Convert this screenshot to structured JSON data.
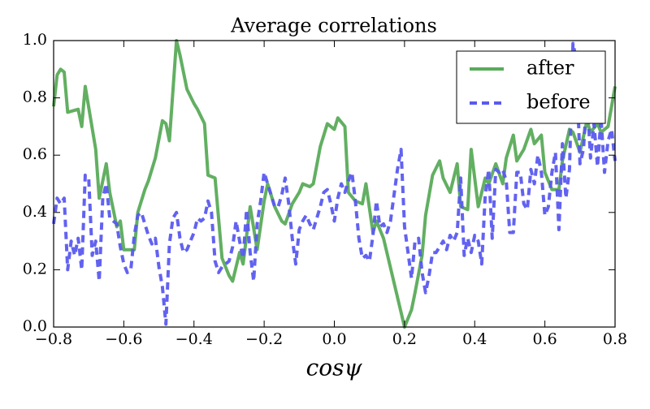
{
  "chart_data": {
    "type": "line",
    "title": "Average correlations",
    "xlabel": "cosψ",
    "xlim": [
      -0.8,
      0.8
    ],
    "ylim": [
      0,
      1
    ],
    "xticks": [
      {
        "value": -0.8,
        "label": "−0.8"
      },
      {
        "value": -0.6,
        "label": "−0.6"
      },
      {
        "value": -0.4,
        "label": "−0.4"
      },
      {
        "value": -0.2,
        "label": "−0.2"
      },
      {
        "value": 0,
        "label": "0.0"
      },
      0.2,
      0.4,
      0.6,
      0.8
    ],
    "yticks": [
      {
        "value": 0,
        "label": "0.0"
      },
      0.2,
      0.4,
      0.6,
      0.8,
      {
        "value": 1,
        "label": "1.0"
      }
    ],
    "legend": "upper right",
    "series": [
      {
        "name": "after",
        "color": "#5aab5a",
        "dash": "solid",
        "x": [
          -0.8,
          -0.79,
          -0.78,
          -0.77,
          -0.76,
          -0.73,
          -0.72,
          -0.71,
          -0.68,
          -0.67,
          -0.65,
          -0.64,
          -0.62,
          -0.61,
          -0.6,
          -0.57,
          -0.56,
          -0.54,
          -0.53,
          -0.51,
          -0.49,
          -0.48,
          -0.47,
          -0.45,
          -0.44,
          -0.42,
          -0.4,
          -0.39,
          -0.37,
          -0.36,
          -0.34,
          -0.32,
          -0.3,
          -0.29,
          -0.27,
          -0.26,
          -0.24,
          -0.22,
          -0.2,
          -0.19,
          -0.17,
          -0.15,
          -0.14,
          -0.12,
          -0.1,
          -0.09,
          -0.07,
          -0.06,
          -0.04,
          -0.02,
          0.0,
          0.01,
          0.03,
          0.04,
          0.06,
          0.08,
          0.09,
          0.11,
          0.12,
          0.14,
          0.2,
          0.22,
          0.23,
          0.25,
          0.26,
          0.28,
          0.3,
          0.31,
          0.33,
          0.35,
          0.36,
          0.38,
          0.39,
          0.41,
          0.43,
          0.44,
          0.46,
          0.48,
          0.49,
          0.51,
          0.52,
          0.54,
          0.56,
          0.57,
          0.59,
          0.6,
          0.62,
          0.64,
          0.65,
          0.67,
          0.68,
          0.7,
          0.72,
          0.73,
          0.75,
          0.76,
          0.78,
          0.8
        ],
        "values": [
          0.77,
          0.88,
          0.9,
          0.89,
          0.75,
          0.76,
          0.7,
          0.84,
          0.62,
          0.45,
          0.57,
          0.47,
          0.35,
          0.37,
          0.27,
          0.27,
          0.4,
          0.48,
          0.51,
          0.59,
          0.72,
          0.71,
          0.65,
          1.0,
          0.95,
          0.83,
          0.78,
          0.76,
          0.71,
          0.53,
          0.52,
          0.24,
          0.18,
          0.16,
          0.26,
          0.22,
          0.42,
          0.27,
          0.44,
          0.5,
          0.42,
          0.37,
          0.36,
          0.43,
          0.47,
          0.5,
          0.49,
          0.5,
          0.63,
          0.71,
          0.69,
          0.73,
          0.7,
          0.47,
          0.44,
          0.43,
          0.5,
          0.33,
          0.37,
          0.31,
          0.0,
          0.06,
          0.12,
          0.25,
          0.39,
          0.53,
          0.58,
          0.52,
          0.47,
          0.57,
          0.42,
          0.41,
          0.62,
          0.42,
          0.52,
          0.5,
          0.57,
          0.5,
          0.59,
          0.67,
          0.58,
          0.62,
          0.69,
          0.64,
          0.67,
          0.54,
          0.48,
          0.48,
          0.58,
          0.69,
          0.68,
          0.61,
          0.72,
          0.68,
          0.71,
          0.68,
          0.7,
          0.84
        ]
      },
      {
        "name": "before",
        "color": "#5a5af0",
        "dash": "dashed",
        "x": [
          -0.8,
          -0.79,
          -0.78,
          -0.77,
          -0.76,
          -0.75,
          -0.74,
          -0.73,
          -0.72,
          -0.71,
          -0.7,
          -0.69,
          -0.68,
          -0.67,
          -0.66,
          -0.65,
          -0.64,
          -0.62,
          -0.61,
          -0.6,
          -0.59,
          -0.58,
          -0.57,
          -0.56,
          -0.55,
          -0.54,
          -0.53,
          -0.52,
          -0.51,
          -0.5,
          -0.49,
          -0.48,
          -0.47,
          -0.46,
          -0.45,
          -0.44,
          -0.43,
          -0.42,
          -0.41,
          -0.4,
          -0.39,
          -0.38,
          -0.37,
          -0.36,
          -0.35,
          -0.34,
          -0.33,
          -0.32,
          -0.31,
          -0.3,
          -0.29,
          -0.28,
          -0.27,
          -0.26,
          -0.25,
          -0.24,
          -0.23,
          -0.22,
          -0.21,
          -0.2,
          -0.19,
          -0.18,
          -0.17,
          -0.16,
          -0.15,
          -0.14,
          -0.13,
          -0.12,
          -0.11,
          -0.1,
          -0.09,
          -0.08,
          -0.07,
          -0.06,
          -0.05,
          -0.04,
          -0.03,
          -0.02,
          -0.01,
          0.0,
          0.01,
          0.02,
          0.03,
          0.04,
          0.05,
          0.06,
          0.07,
          0.08,
          0.09,
          0.1,
          0.11,
          0.12,
          0.13,
          0.14,
          0.15,
          0.16,
          0.17,
          0.18,
          0.19,
          0.2,
          0.21,
          0.22,
          0.23,
          0.24,
          0.25,
          0.26,
          0.27,
          0.28,
          0.29,
          0.3,
          0.31,
          0.32,
          0.33,
          0.34,
          0.35,
          0.36,
          0.37,
          0.38,
          0.39,
          0.4,
          0.41,
          0.42,
          0.43,
          0.44,
          0.45,
          0.46,
          0.47,
          0.48,
          0.49,
          0.5,
          0.51,
          0.52,
          0.53,
          0.54,
          0.55,
          0.56,
          0.57,
          0.58,
          0.59,
          0.6,
          0.61,
          0.62,
          0.63,
          0.64,
          0.65,
          0.66,
          0.67,
          0.68,
          0.69,
          0.7,
          0.71,
          0.72,
          0.73,
          0.74,
          0.75,
          0.76,
          0.77,
          0.78,
          0.79,
          0.8
        ],
        "values": [
          0.36,
          0.45,
          0.43,
          0.45,
          0.2,
          0.3,
          0.25,
          0.31,
          0.2,
          0.53,
          0.52,
          0.25,
          0.3,
          0.16,
          0.45,
          0.5,
          0.38,
          0.36,
          0.28,
          0.22,
          0.19,
          0.2,
          0.32,
          0.39,
          0.4,
          0.36,
          0.32,
          0.29,
          0.31,
          0.21,
          0.14,
          0.01,
          0.29,
          0.38,
          0.4,
          0.31,
          0.26,
          0.27,
          0.3,
          0.33,
          0.38,
          0.37,
          0.38,
          0.44,
          0.4,
          0.23,
          0.19,
          0.21,
          0.22,
          0.23,
          0.28,
          0.37,
          0.3,
          0.24,
          0.41,
          0.26,
          0.16,
          0.36,
          0.44,
          0.54,
          0.5,
          0.46,
          0.42,
          0.42,
          0.46,
          0.52,
          0.43,
          0.31,
          0.22,
          0.34,
          0.37,
          0.39,
          0.36,
          0.34,
          0.38,
          0.42,
          0.47,
          0.48,
          0.43,
          0.37,
          0.45,
          0.5,
          0.47,
          0.51,
          0.54,
          0.44,
          0.31,
          0.24,
          0.25,
          0.23,
          0.32,
          0.44,
          0.35,
          0.36,
          0.33,
          0.37,
          0.46,
          0.55,
          0.62,
          0.35,
          0.26,
          0.17,
          0.3,
          0.31,
          0.19,
          0.12,
          0.18,
          0.26,
          0.26,
          0.28,
          0.3,
          0.27,
          0.32,
          0.3,
          0.33,
          0.52,
          0.25,
          0.31,
          0.26,
          0.32,
          0.3,
          0.22,
          0.46,
          0.55,
          0.31,
          0.55,
          0.54,
          0.55,
          0.51,
          0.33,
          0.33,
          0.54,
          0.54,
          0.43,
          0.41,
          0.55,
          0.5,
          0.6,
          0.54,
          0.39,
          0.42,
          0.54,
          0.61,
          0.34,
          0.64,
          0.45,
          0.55,
          0.99,
          0.93,
          0.57,
          0.62,
          0.81,
          0.59,
          0.71,
          0.56,
          0.73,
          0.54,
          0.65,
          0.69,
          0.58
        ]
      }
    ]
  }
}
